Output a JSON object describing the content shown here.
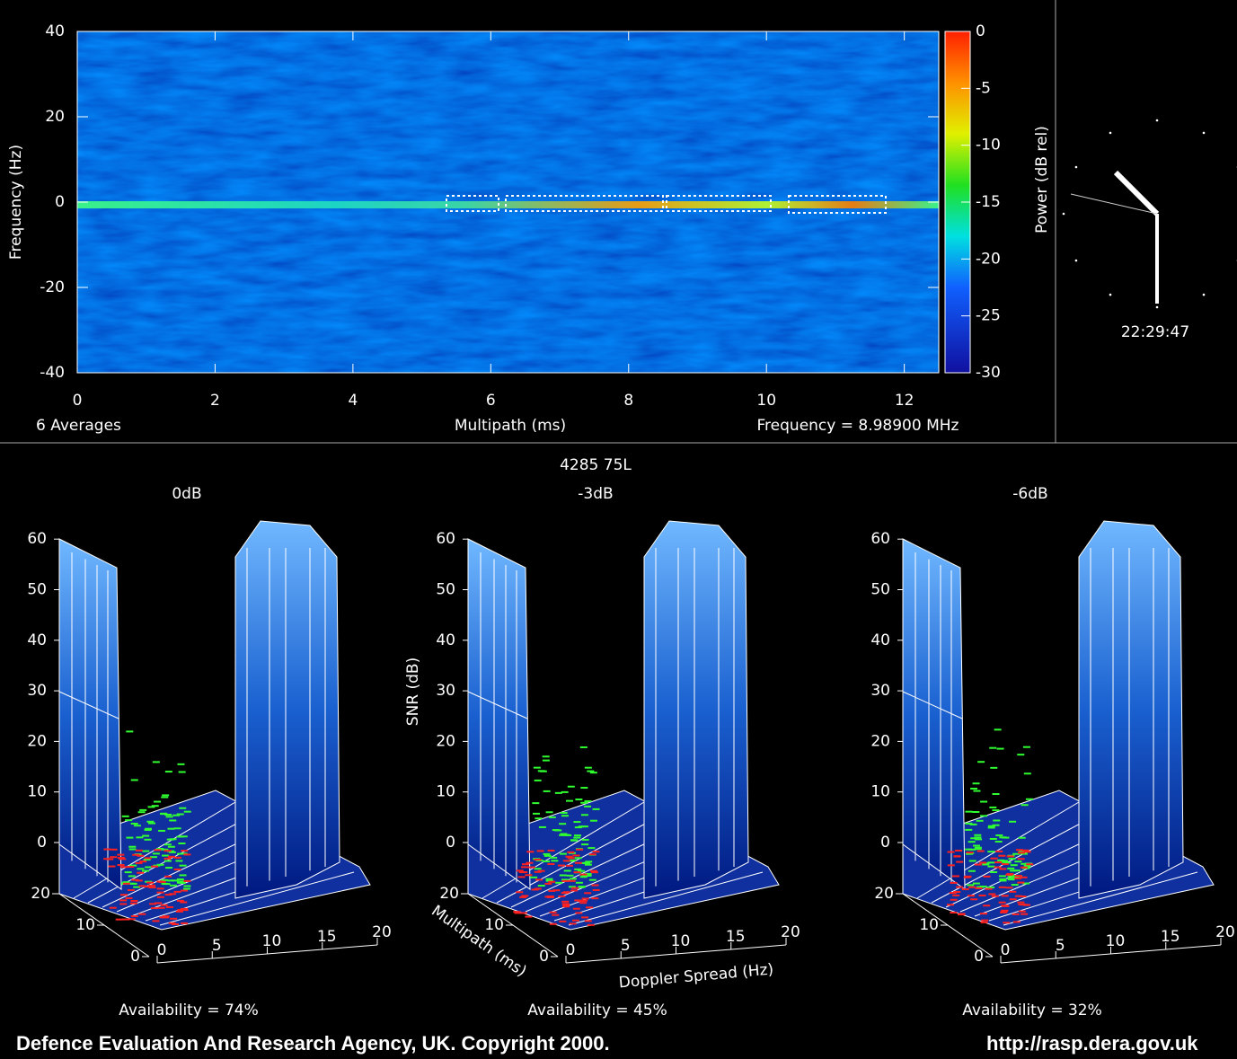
{
  "spectrogram": {
    "ylabel": "Frequency (Hz)",
    "xlabel": "Multipath (ms)",
    "averages": "6 Averages",
    "frequency": "Frequency = 8.98900 MHz",
    "xlim": [
      0,
      12.5
    ],
    "xticks": [
      0,
      2,
      4,
      6,
      8,
      10,
      12
    ],
    "ylim": [
      -40,
      40
    ],
    "yticks": [
      40,
      20,
      0,
      -20,
      -40
    ]
  },
  "colorbar": {
    "label": "Power (dB rel)",
    "lim": [
      -30,
      0
    ],
    "ticks": [
      0,
      -5,
      -10,
      -15,
      -20,
      -25,
      -30
    ]
  },
  "clock": {
    "time": "22:29:47"
  },
  "surfaces": {
    "title": "4285 75L",
    "zlabel": "SNR (dB)",
    "multipath_label": "Multipath (ms)",
    "doppler_label": "Doppler Spread (Hz)",
    "zticks": [
      60,
      50,
      40,
      30,
      20,
      10,
      0
    ],
    "multipath_ticks": [
      20,
      10,
      0
    ],
    "doppler_ticks": [
      0,
      5,
      10,
      15,
      20
    ],
    "panels": [
      {
        "title": "0dB",
        "availability": "Availability = 74%"
      },
      {
        "title": "-3dB",
        "availability": "Availability = 45%"
      },
      {
        "title": "-6dB",
        "availability": "Availability = 32%"
      }
    ]
  },
  "footer": {
    "left": "Defence Evaluation And Research Agency, UK. Copyright 2000.",
    "right": "http://rasp.dera.gov.uk"
  }
}
